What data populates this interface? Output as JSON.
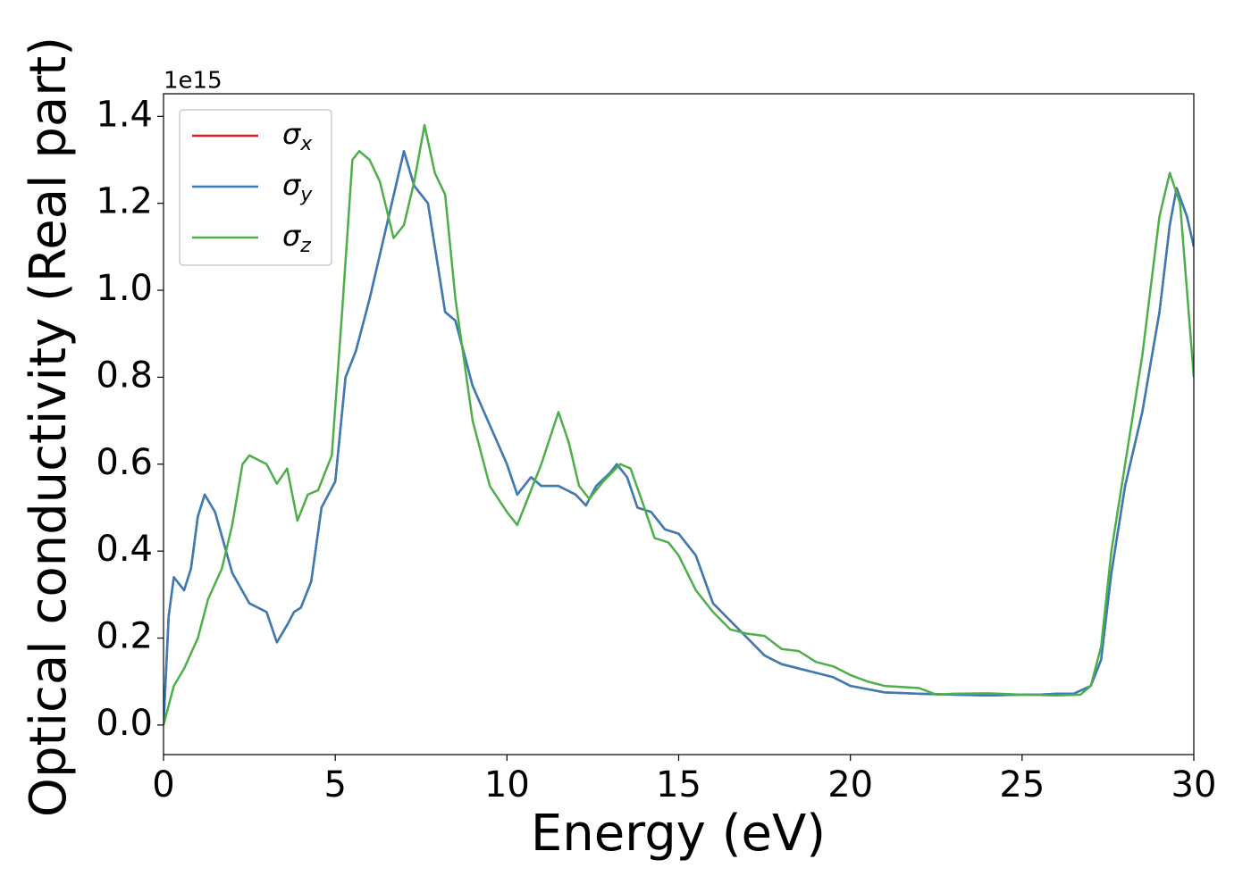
{
  "chart_data": {
    "type": "line",
    "xlabel": "Energy (eV)",
    "ylabel": "Optical conductivity (Real part)",
    "offset_text": "1e15",
    "xlim": [
      0,
      30
    ],
    "xticks": [
      0,
      5,
      10,
      15,
      20,
      25,
      30
    ],
    "ylim": [
      -0.068,
      1.452
    ],
    "yticks": [
      {
        "value": 0,
        "label": "0.0"
      },
      0.2,
      0.4,
      0.6,
      0.8,
      {
        "value": 1,
        "label": "1.0"
      },
      1.2,
      1.4
    ],
    "legend": "upper left",
    "series": [
      {
        "name": "σx",
        "color": "#e41a1c",
        "x": [
          0,
          0.15,
          0.3,
          0.5,
          0.6,
          0.8,
          1.0,
          1.2,
          1.5,
          2.0,
          2.5,
          3.0,
          3.3,
          3.6,
          3.8,
          4.0,
          4.3,
          4.6,
          5.0,
          5.3,
          5.6,
          6.0,
          6.5,
          7.0,
          7.3,
          7.7,
          8.0,
          8.2,
          8.5,
          9.0,
          9.5,
          10.0,
          10.3,
          10.7,
          11.0,
          11.5,
          12.0,
          12.3,
          12.6,
          13.0,
          13.2,
          13.5,
          13.8,
          14.2,
          14.6,
          15.0,
          15.5,
          16.0,
          16.5,
          17.0,
          17.5,
          18.0,
          18.5,
          19.0,
          19.5,
          20.0,
          21.0,
          22.0,
          23.0,
          24.0,
          25.0,
          25.5,
          26.0,
          26.5,
          27.0,
          27.3,
          27.6,
          28.0,
          28.5,
          29.0,
          29.3,
          29.5,
          29.8,
          30.0
        ],
        "values": [
          0,
          0.25,
          0.34,
          0.32,
          0.31,
          0.36,
          0.48,
          0.53,
          0.49,
          0.35,
          0.28,
          0.26,
          0.19,
          0.23,
          0.26,
          0.27,
          0.33,
          0.5,
          0.56,
          0.8,
          0.86,
          0.98,
          1.15,
          1.32,
          1.24,
          1.2,
          1.05,
          0.95,
          0.93,
          0.78,
          0.69,
          0.6,
          0.53,
          0.57,
          0.55,
          0.55,
          0.53,
          0.505,
          0.55,
          0.58,
          0.6,
          0.57,
          0.5,
          0.49,
          0.45,
          0.44,
          0.39,
          0.28,
          0.24,
          0.2,
          0.16,
          0.14,
          0.13,
          0.12,
          0.11,
          0.09,
          0.075,
          0.072,
          0.07,
          0.068,
          0.07,
          0.07,
          0.072,
          0.072,
          0.09,
          0.15,
          0.35,
          0.55,
          0.72,
          0.95,
          1.15,
          1.235,
          1.17,
          1.1
        ]
      },
      {
        "name": "σy",
        "color": "#377eb8",
        "x": [
          0,
          0.15,
          0.3,
          0.5,
          0.6,
          0.8,
          1.0,
          1.2,
          1.5,
          2.0,
          2.5,
          3.0,
          3.3,
          3.6,
          3.8,
          4.0,
          4.3,
          4.6,
          5.0,
          5.3,
          5.6,
          6.0,
          6.5,
          7.0,
          7.3,
          7.7,
          8.0,
          8.2,
          8.5,
          9.0,
          9.5,
          10.0,
          10.3,
          10.7,
          11.0,
          11.5,
          12.0,
          12.3,
          12.6,
          13.0,
          13.2,
          13.5,
          13.8,
          14.2,
          14.6,
          15.0,
          15.5,
          16.0,
          16.5,
          17.0,
          17.5,
          18.0,
          18.5,
          19.0,
          19.5,
          20.0,
          21.0,
          22.0,
          23.0,
          24.0,
          25.0,
          25.5,
          26.0,
          26.5,
          27.0,
          27.3,
          27.6,
          28.0,
          28.5,
          29.0,
          29.3,
          29.5,
          29.8,
          30.0
        ],
        "values": [
          0,
          0.25,
          0.34,
          0.32,
          0.31,
          0.36,
          0.48,
          0.53,
          0.49,
          0.35,
          0.28,
          0.26,
          0.19,
          0.23,
          0.26,
          0.27,
          0.33,
          0.5,
          0.56,
          0.8,
          0.86,
          0.98,
          1.15,
          1.32,
          1.24,
          1.2,
          1.05,
          0.95,
          0.93,
          0.78,
          0.69,
          0.6,
          0.53,
          0.57,
          0.55,
          0.55,
          0.53,
          0.505,
          0.55,
          0.58,
          0.6,
          0.57,
          0.5,
          0.49,
          0.45,
          0.44,
          0.39,
          0.28,
          0.24,
          0.2,
          0.16,
          0.14,
          0.13,
          0.12,
          0.11,
          0.09,
          0.075,
          0.072,
          0.07,
          0.068,
          0.07,
          0.07,
          0.072,
          0.072,
          0.09,
          0.15,
          0.35,
          0.55,
          0.72,
          0.95,
          1.15,
          1.235,
          1.17,
          1.1
        ]
      },
      {
        "name": "σz",
        "color": "#4daf4a",
        "x": [
          0,
          0.3,
          0.6,
          1.0,
          1.3,
          1.7,
          2.0,
          2.3,
          2.5,
          3.0,
          3.3,
          3.6,
          3.9,
          4.2,
          4.5,
          4.9,
          5.2,
          5.5,
          5.7,
          6.0,
          6.3,
          6.7,
          7.0,
          7.3,
          7.6,
          7.9,
          8.2,
          8.5,
          9.0,
          9.5,
          10.0,
          10.3,
          10.6,
          11.0,
          11.5,
          11.8,
          12.1,
          12.4,
          12.8,
          13.3,
          13.6,
          14.0,
          14.3,
          14.7,
          15.0,
          15.5,
          16.0,
          16.5,
          17.0,
          17.5,
          18.0,
          18.5,
          19.0,
          19.5,
          20.0,
          20.5,
          21.0,
          22.0,
          22.5,
          23.0,
          24.0,
          25.0,
          26.0,
          26.7,
          27.0,
          27.3,
          27.6,
          28.0,
          28.5,
          29.0,
          29.3,
          29.6,
          30.0
        ],
        "values": [
          0,
          0.09,
          0.13,
          0.2,
          0.29,
          0.36,
          0.46,
          0.6,
          0.62,
          0.6,
          0.555,
          0.59,
          0.47,
          0.53,
          0.54,
          0.62,
          0.95,
          1.3,
          1.32,
          1.3,
          1.25,
          1.12,
          1.15,
          1.25,
          1.38,
          1.27,
          1.22,
          0.98,
          0.7,
          0.55,
          0.49,
          0.46,
          0.52,
          0.6,
          0.72,
          0.65,
          0.55,
          0.52,
          0.56,
          0.6,
          0.59,
          0.5,
          0.43,
          0.42,
          0.39,
          0.31,
          0.26,
          0.22,
          0.21,
          0.205,
          0.175,
          0.17,
          0.145,
          0.135,
          0.115,
          0.1,
          0.09,
          0.085,
          0.07,
          0.072,
          0.073,
          0.07,
          0.068,
          0.07,
          0.09,
          0.18,
          0.4,
          0.6,
          0.85,
          1.17,
          1.27,
          1.2,
          0.8
        ]
      }
    ]
  }
}
